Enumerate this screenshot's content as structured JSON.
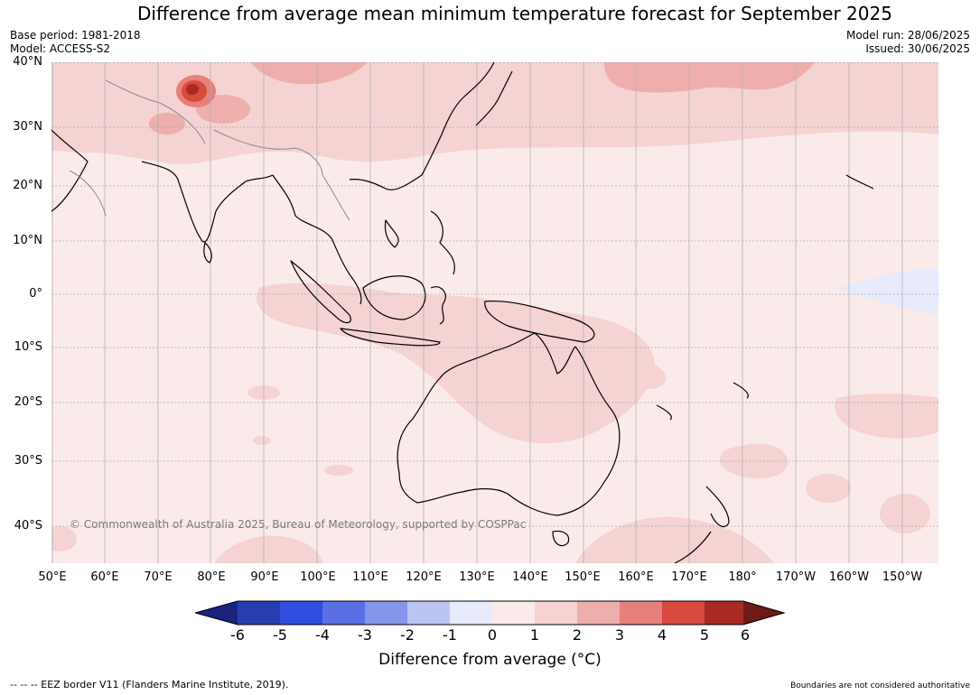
{
  "title": "Difference from average mean minimum temperature forecast for September 2025",
  "meta_left": {
    "base_period": "Base period: 1981-2018",
    "model": "Model: ACCESS-S2"
  },
  "meta_right": {
    "model_run": "Model run: 28/06/2025",
    "issued": "Issued: 30/06/2025"
  },
  "copyright": "© Commonwealth of Australia 2025, Bureau of Meteorology, supported by COSPPac",
  "lat_labels": [
    "40°N",
    "30°N",
    "20°N",
    "10°N",
    "0°",
    "10°S",
    "20°S",
    "30°S",
    "40°S"
  ],
  "lon_labels": [
    "50°E",
    "60°E",
    "70°E",
    "80°E",
    "90°E",
    "100°E",
    "110°E",
    "120°E",
    "130°E",
    "140°E",
    "150°E",
    "160°E",
    "170°E",
    "180°",
    "170°W",
    "160°W",
    "150°W"
  ],
  "colorbar": {
    "ticks": [
      "-6",
      "-5",
      "-4",
      "-3",
      "-2",
      "-1",
      "0",
      "1",
      "2",
      "3",
      "4",
      "5",
      "6"
    ],
    "colors": [
      "#1a237e",
      "#283db0",
      "#2f4de0",
      "#5a6fe3",
      "#8595ea",
      "#bcc4f4",
      "#e8ebfb",
      "#fbeaea",
      "#f4d3d2",
      "#eeaeac",
      "#e6807c",
      "#d94a3f",
      "#a82a22",
      "#6e1a16"
    ],
    "label": "Difference from average (°C)"
  },
  "footer_left": "--  --  -- EEZ border V11 (Flanders Marine Institute, 2019).",
  "footer_right": "Boundaries are not considered authoritative"
}
